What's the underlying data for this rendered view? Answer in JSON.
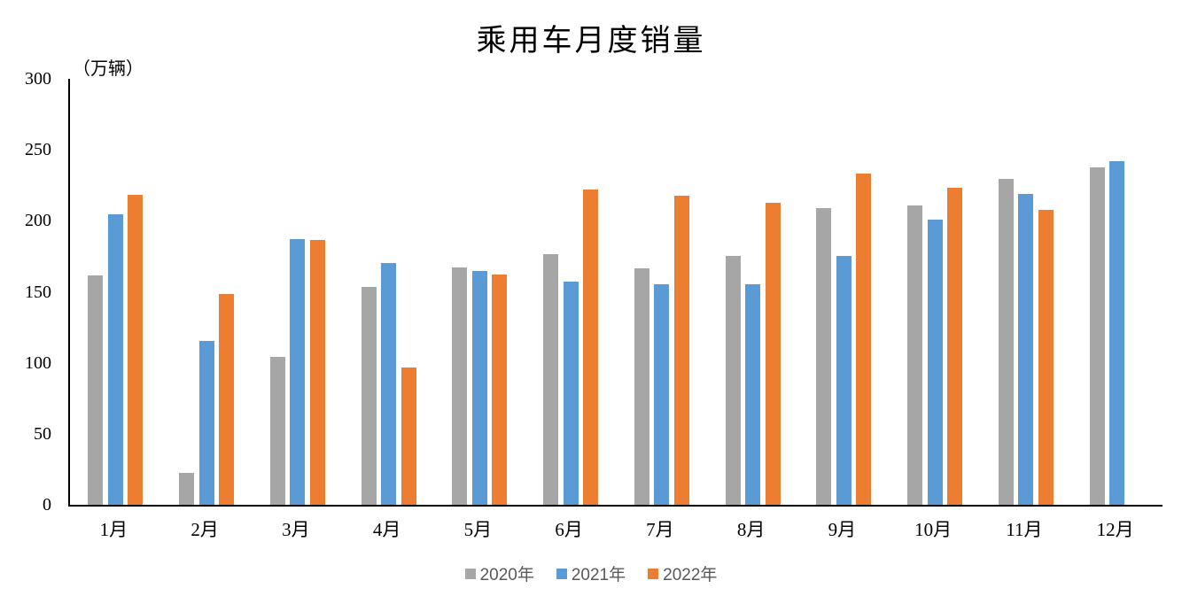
{
  "chart": {
    "title": "乘用车月度销量",
    "unit_label": "（万辆）"
  },
  "chart_data": {
    "type": "bar",
    "title": "乘用车月度销量",
    "ylabel": "（万辆）",
    "categories": [
      "1月",
      "2月",
      "3月",
      "4月",
      "5月",
      "6月",
      "7月",
      "8月",
      "9月",
      "10月",
      "11月",
      "12月"
    ],
    "series": [
      {
        "name": "2020年",
        "color": "#A6A6A6",
        "values": [
          161.4,
          22.4,
          104.3,
          153.6,
          167.4,
          176.4,
          166.5,
          175.5,
          208.8,
          211.0,
          229.7,
          237.5
        ]
      },
      {
        "name": "2021年",
        "color": "#5B9BD5",
        "values": [
          204.5,
          115.6,
          187.4,
          170.4,
          164.6,
          156.9,
          155.1,
          155.2,
          175.1,
          200.7,
          219.2,
          242.2
        ]
      },
      {
        "name": "2022年",
        "color": "#ED7D31",
        "values": [
          218.6,
          148.7,
          186.4,
          96.5,
          162.3,
          222.2,
          217.4,
          212.5,
          233.2,
          223.1,
          207.5,
          null
        ]
      }
    ],
    "ylim": [
      0,
      300
    ],
    "yticks": [
      0,
      50,
      100,
      150,
      200,
      250,
      300
    ],
    "grid": false,
    "legend_position": "bottom",
    "axis_color": "#000000",
    "legend_text_color": "#595959"
  }
}
